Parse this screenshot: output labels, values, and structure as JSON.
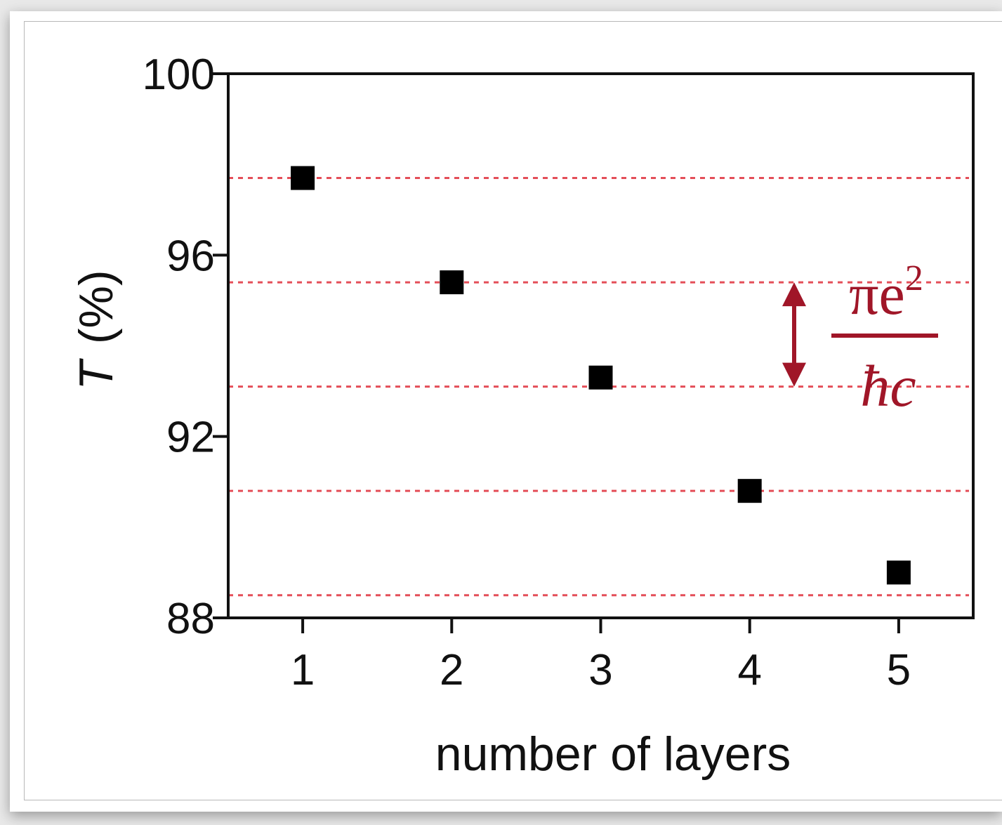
{
  "chart_data": {
    "type": "scatter",
    "xlabel": "number of layers",
    "ylabel_symbol": "T",
    "ylabel_unit": "(%)",
    "x_ticks": [
      "1",
      "2",
      "3",
      "4",
      "5"
    ],
    "y_ticks": [
      "88",
      "92",
      "96",
      "100"
    ],
    "xlim": [
      0.5,
      5.5
    ],
    "ylim": [
      88,
      100
    ],
    "series": [
      {
        "x": [
          1,
          2,
          3,
          4,
          5
        ],
        "y": [
          97.7,
          95.4,
          93.3,
          90.8,
          89.0
        ]
      }
    ],
    "reference_lines": [
      97.7,
      95.4,
      93.1,
      90.8,
      88.5
    ],
    "reference_line_color": "#e0303c",
    "marker_color": "#000000",
    "annotation": {
      "numerator": "πe",
      "exponent": "2",
      "denominator": "ħc",
      "color": "#a01628",
      "arrow_from": 95.4,
      "arrow_to": 93.1
    },
    "grid": false
  }
}
